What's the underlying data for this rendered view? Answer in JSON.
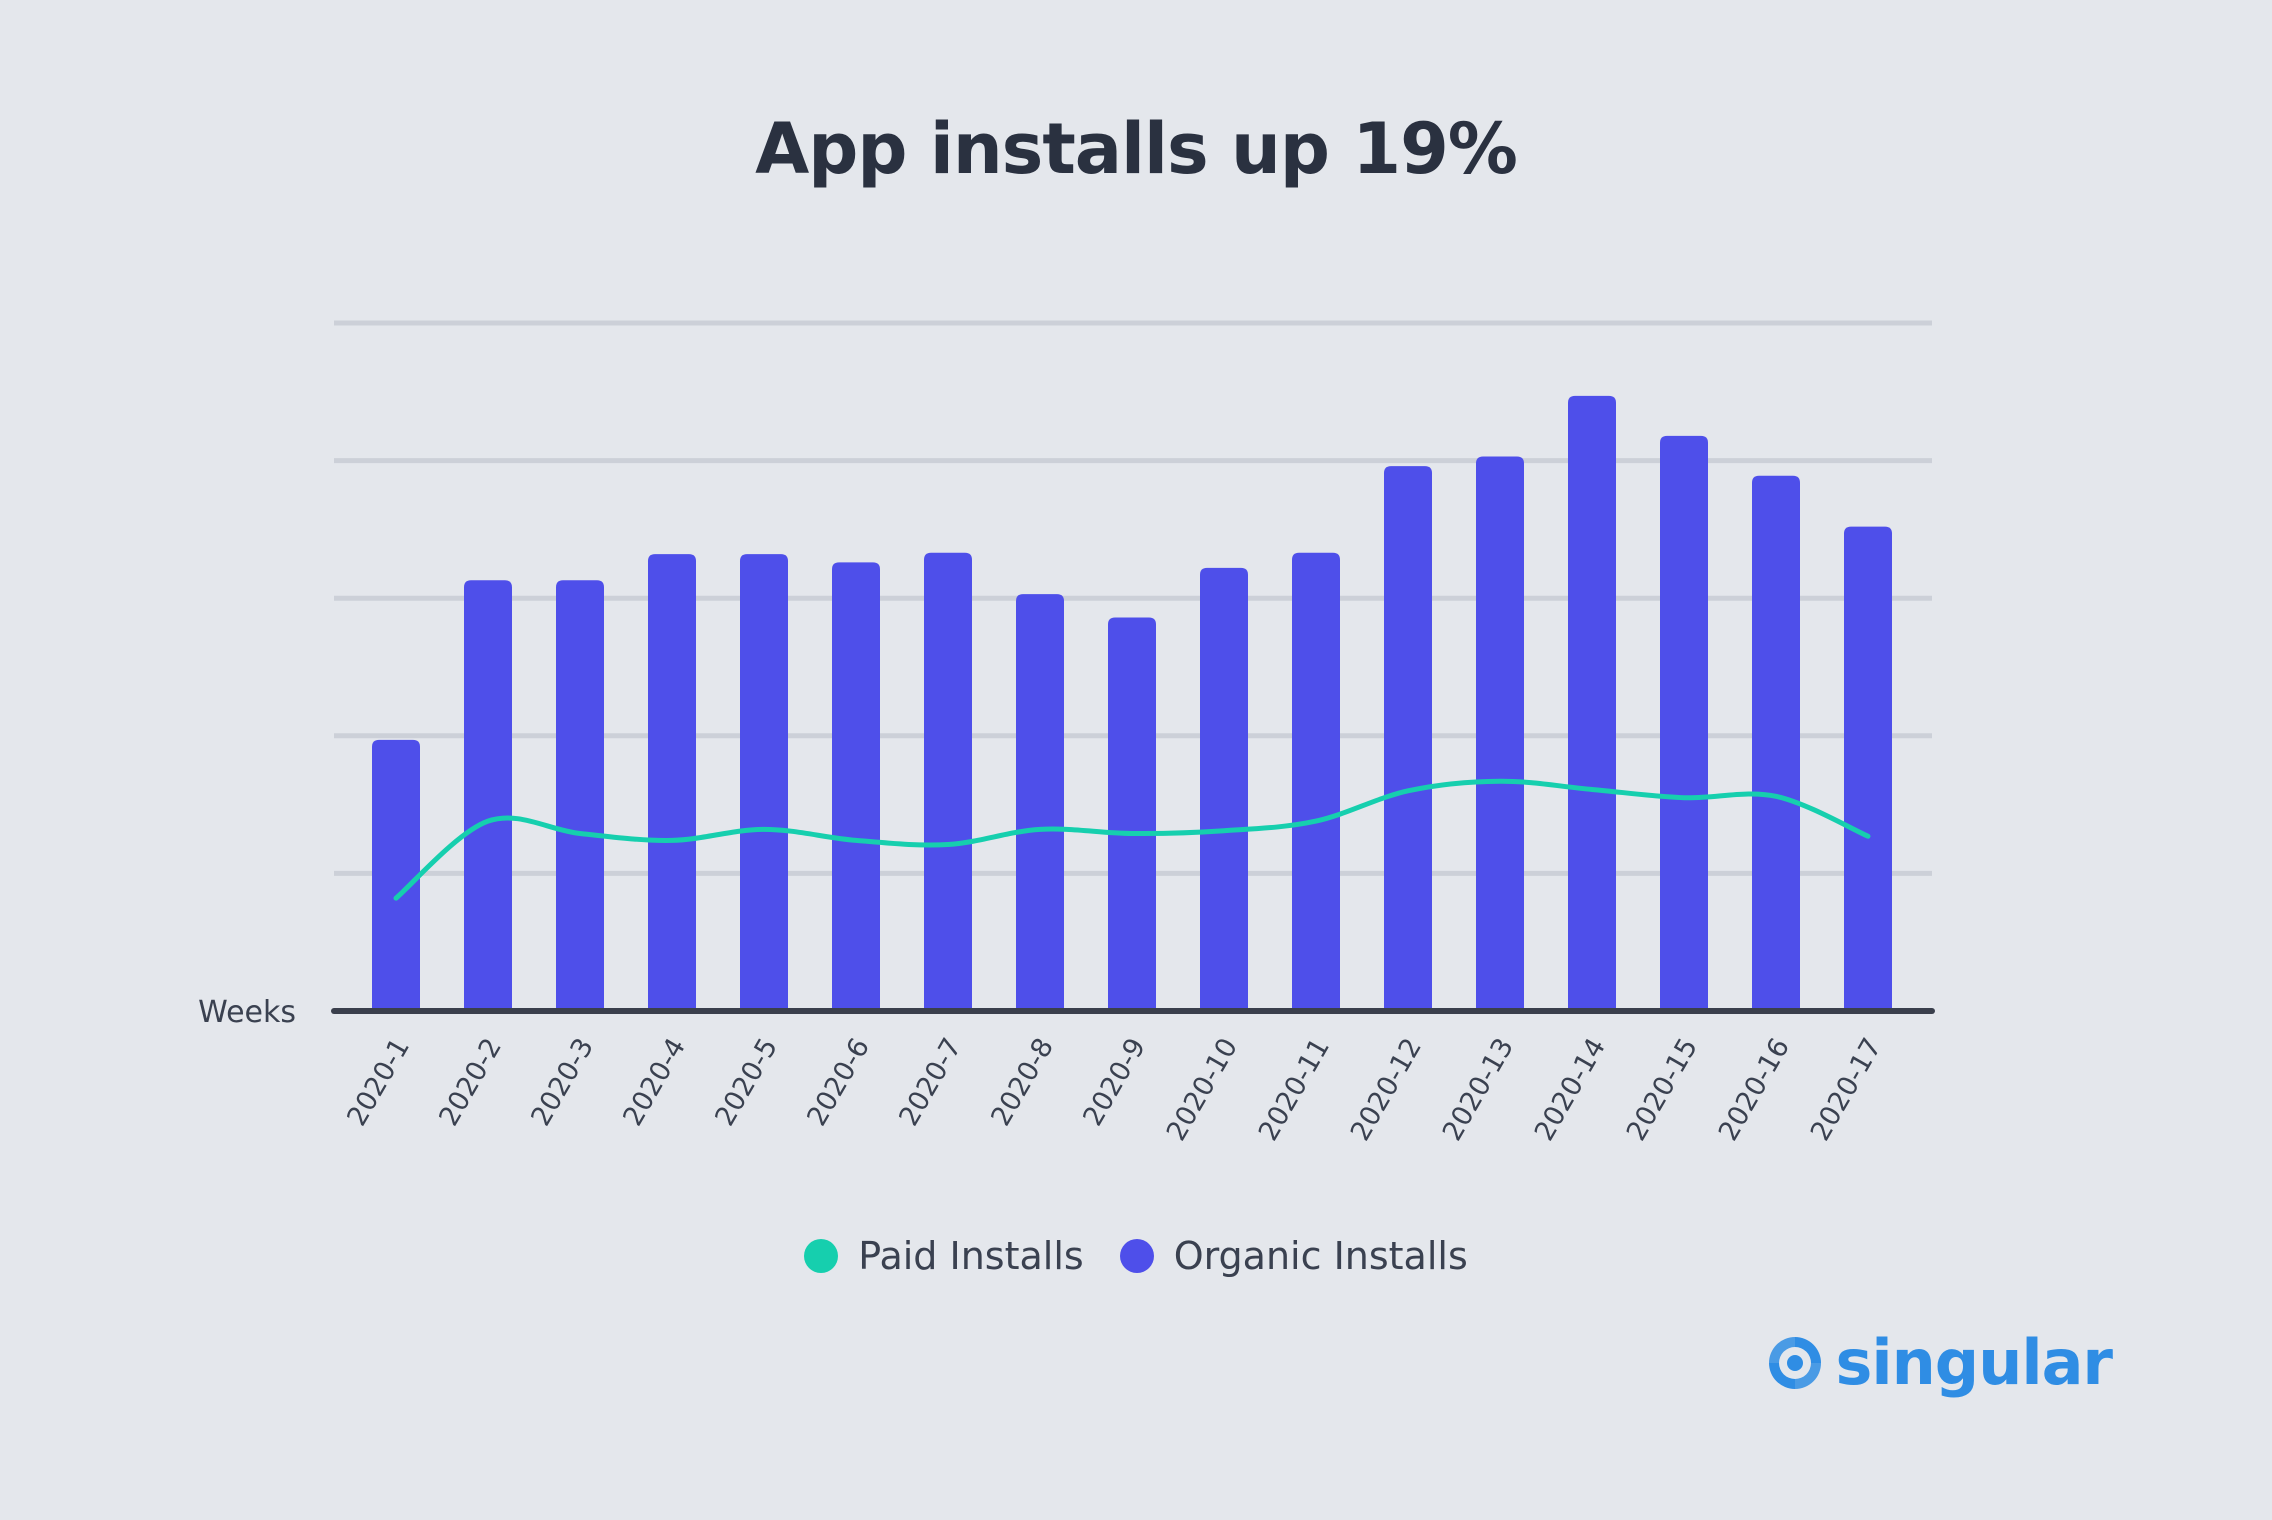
{
  "chart_data": {
    "type": "bar",
    "title": "App installs up 19%",
    "xlabel": "Weeks",
    "ylabel": "",
    "ylim": [
      0,
      5
    ],
    "grid": true,
    "categories": [
      "2020-1",
      "2020-2",
      "2020-3",
      "2020-4",
      "2020-5",
      "2020-6",
      "2020-7",
      "2020-8",
      "2020-9",
      "2020-10",
      "2020-11",
      "2020-12",
      "2020-13",
      "2020-14",
      "2020-15",
      "2020-16",
      "2020-17"
    ],
    "series": [
      {
        "name": "Organic Installs",
        "type": "bar",
        "color": "#4e4fea",
        "values": [
          1.97,
          3.13,
          3.13,
          3.32,
          3.32,
          3.26,
          3.33,
          3.03,
          2.86,
          3.22,
          3.33,
          3.96,
          4.03,
          4.47,
          4.18,
          3.89,
          3.52
        ]
      },
      {
        "name": "Paid Installs",
        "type": "line",
        "color": "#16cfae",
        "values": [
          0.82,
          1.38,
          1.29,
          1.24,
          1.32,
          1.24,
          1.21,
          1.32,
          1.29,
          1.31,
          1.38,
          1.6,
          1.67,
          1.61,
          1.55,
          1.56,
          1.27
        ]
      }
    ],
    "legend": {
      "position": "bottom-center",
      "items": [
        {
          "name": "Paid Installs",
          "color": "#16cfae"
        },
        {
          "name": "Organic Installs",
          "color": "#4e4fea"
        }
      ]
    }
  },
  "brand": {
    "name": "singular",
    "color": "#2f8de4",
    "icon": "singular-logo-icon"
  }
}
